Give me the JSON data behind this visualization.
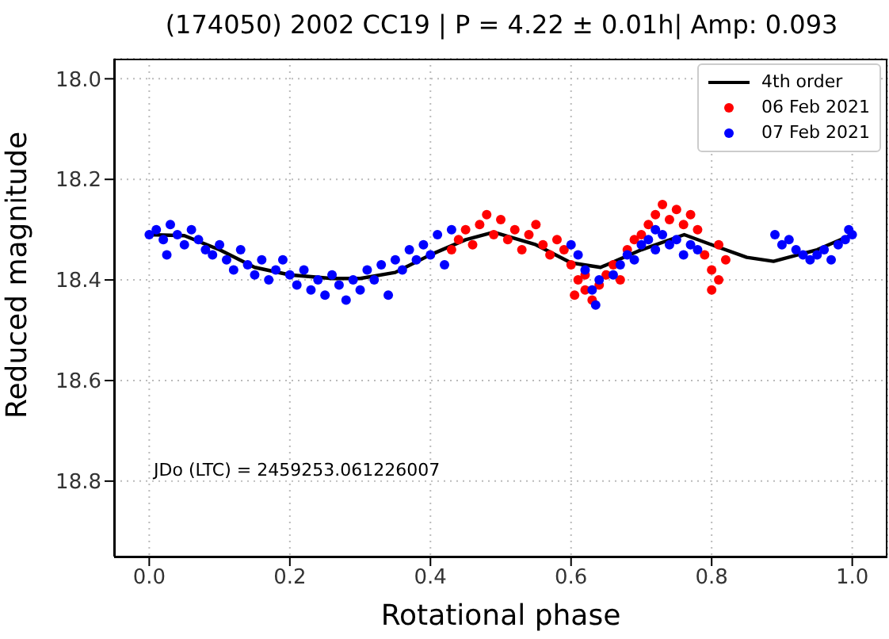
{
  "chart_data": {
    "type": "scatter",
    "title": "(174050) 2002 CC19 | P = 4.22 ± 0.01h| Amp: 0.093",
    "xlabel": "Rotational phase",
    "ylabel": "Reduced magnitude",
    "annotations": [
      "JDo (LTC)  = 2459253.061226007"
    ],
    "xlim": [
      -0.05,
      1.05
    ],
    "xticks": [
      {
        "value": 0,
        "label": "0.0"
      },
      0.2,
      0.4,
      0.6,
      0.8,
      {
        "value": 1,
        "label": "1.0"
      }
    ],
    "ylim": [
      18.95,
      17.96
    ],
    "yticks": [
      {
        "value": 18,
        "label": "18.0"
      },
      18.2,
      18.4,
      18.6,
      18.8
    ],
    "grid": true,
    "legend": "top right",
    "marker": "circle",
    "series": [
      {
        "name": "4th order",
        "type": "line",
        "marker": "none",
        "color": "#000000",
        "line_style": "solid",
        "x": [
          0,
          0.05,
          0.1,
          0.15,
          0.2,
          0.26,
          0.3,
          0.35,
          0.4,
          0.45,
          0.49,
          0.55,
          0.6,
          0.642,
          0.7,
          0.761,
          0.8,
          0.85,
          0.888,
          0.95,
          1
        ],
        "values": [
          18.31,
          18.312,
          18.34,
          18.375,
          18.39,
          18.397,
          18.397,
          18.385,
          18.35,
          18.32,
          18.305,
          18.33,
          18.366,
          18.375,
          18.34,
          18.31,
          18.33,
          18.355,
          18.363,
          18.34,
          18.31
        ]
      },
      {
        "name": "06 Feb 2021",
        "color": "#ff0000",
        "x": [
          0.43,
          0.44,
          0.45,
          0.46,
          0.47,
          0.48,
          0.49,
          0.5,
          0.51,
          0.52,
          0.53,
          0.54,
          0.55,
          0.56,
          0.57,
          0.58,
          0.59,
          0.6,
          0.605,
          0.61,
          0.62,
          0.62,
          0.63,
          0.64,
          0.65,
          0.66,
          0.67,
          0.68,
          0.69,
          0.7,
          0.71,
          0.72,
          0.73,
          0.74,
          0.75,
          0.76,
          0.77,
          0.78,
          0.79,
          0.8,
          0.8,
          0.81,
          0.81,
          0.82
        ],
        "values": [
          18.34,
          18.32,
          18.3,
          18.33,
          18.29,
          18.27,
          18.31,
          18.28,
          18.32,
          18.3,
          18.34,
          18.31,
          18.29,
          18.33,
          18.35,
          18.32,
          18.34,
          18.37,
          18.43,
          18.4,
          18.42,
          18.39,
          18.44,
          18.41,
          18.39,
          18.37,
          18.4,
          18.34,
          18.32,
          18.31,
          18.29,
          18.27,
          18.25,
          18.28,
          18.26,
          18.29,
          18.27,
          18.3,
          18.35,
          18.38,
          18.42,
          18.4,
          18.33,
          18.36
        ]
      },
      {
        "name": "07 Feb 2021",
        "color": "#0000ff",
        "x": [
          0,
          0.01,
          0.02,
          0.025,
          0.03,
          0.04,
          0.05,
          0.06,
          0.07,
          0.08,
          0.09,
          0.1,
          0.11,
          0.12,
          0.13,
          0.14,
          0.15,
          0.16,
          0.17,
          0.18,
          0.19,
          0.2,
          0.21,
          0.22,
          0.23,
          0.24,
          0.25,
          0.26,
          0.27,
          0.28,
          0.29,
          0.3,
          0.31,
          0.32,
          0.33,
          0.34,
          0.35,
          0.36,
          0.37,
          0.38,
          0.39,
          0.4,
          0.41,
          0.42,
          0.43,
          0.6,
          0.61,
          0.62,
          0.63,
          0.635,
          0.64,
          0.66,
          0.67,
          0.68,
          0.69,
          0.7,
          0.71,
          0.72,
          0.72,
          0.73,
          0.74,
          0.75,
          0.76,
          0.77,
          0.78,
          0.89,
          0.9,
          0.91,
          0.92,
          0.93,
          0.94,
          0.95,
          0.96,
          0.97,
          0.98,
          0.99,
          0.995,
          1
        ],
        "values": [
          18.31,
          18.3,
          18.32,
          18.35,
          18.29,
          18.31,
          18.33,
          18.3,
          18.32,
          18.34,
          18.35,
          18.33,
          18.36,
          18.38,
          18.34,
          18.37,
          18.39,
          18.36,
          18.4,
          18.38,
          18.36,
          18.39,
          18.41,
          18.38,
          18.42,
          18.4,
          18.43,
          18.39,
          18.41,
          18.44,
          18.4,
          18.42,
          18.38,
          18.4,
          18.37,
          18.43,
          18.36,
          18.38,
          18.34,
          18.36,
          18.33,
          18.35,
          18.31,
          18.37,
          18.3,
          18.33,
          18.35,
          18.38,
          18.42,
          18.45,
          18.4,
          18.39,
          18.37,
          18.35,
          18.36,
          18.33,
          18.32,
          18.34,
          18.3,
          18.31,
          18.33,
          18.32,
          18.35,
          18.33,
          18.34,
          18.31,
          18.33,
          18.32,
          18.34,
          18.35,
          18.36,
          18.35,
          18.34,
          18.36,
          18.33,
          18.32,
          18.3,
          18.31
        ]
      }
    ]
  }
}
